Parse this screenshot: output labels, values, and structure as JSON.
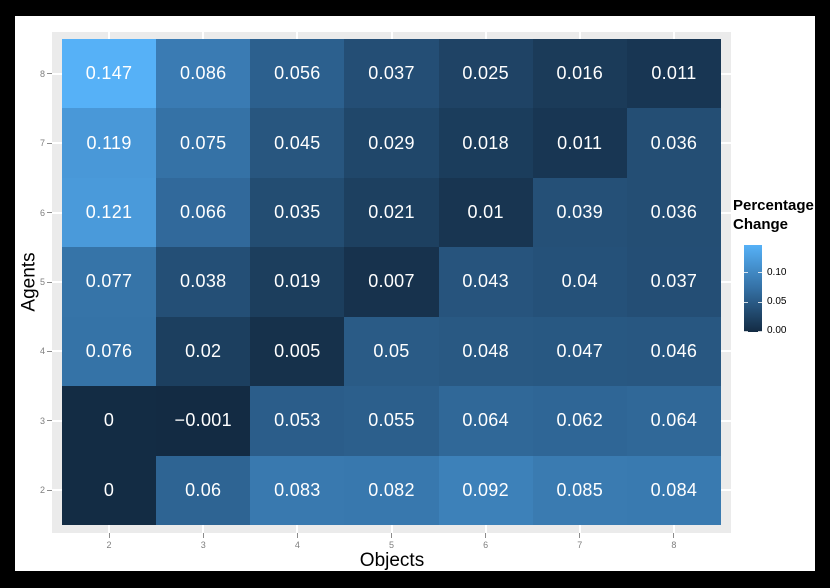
{
  "colors": {
    "page_bg": "#000000",
    "figure_bg": "#FFFFFF",
    "panel_bg": "#EBEBEB",
    "gridline": "#FFFFFF",
    "tick_mark": "#8C8C8C",
    "tick_label": "#7F7F7F",
    "axis_title": "#000000",
    "cell_text": "#FFFFFF",
    "scale_low": "#132B43",
    "scale_mid": "#3470A4",
    "scale_high": "#56B1F7"
  },
  "chart_data": {
    "type": "heatmap",
    "title": "",
    "xlabel": "Objects",
    "ylabel": "Agents",
    "x_categories": [
      "2",
      "3",
      "4",
      "5",
      "6",
      "7",
      "8"
    ],
    "y_categories_top_to_bottom": [
      "8",
      "7",
      "6",
      "5",
      "4",
      "3",
      "2"
    ],
    "rows_top_to_bottom": [
      [
        0.147,
        0.086,
        0.056,
        0.037,
        0.025,
        0.016,
        0.011
      ],
      [
        0.119,
        0.075,
        0.045,
        0.029,
        0.018,
        0.011,
        0.036
      ],
      [
        0.121,
        0.066,
        0.035,
        0.021,
        0.01,
        0.039,
        0.036
      ],
      [
        0.077,
        0.038,
        0.019,
        0.007,
        0.043,
        0.04,
        0.037
      ],
      [
        0.076,
        0.02,
        0.005,
        0.05,
        0.048,
        0.047,
        0.046
      ],
      [
        0,
        -0.001,
        0.053,
        0.055,
        0.064,
        0.062,
        0.064
      ],
      [
        0,
        0.06,
        0.083,
        0.082,
        0.092,
        0.085,
        0.084
      ]
    ],
    "value_range": {
      "min": -0.001,
      "max": 0.147
    },
    "grid": "major gridlines white, visible as stubs in panel margins",
    "legend": {
      "position": "right",
      "title": "Percentage Change",
      "tick_labels": [
        "0.10",
        "0.05",
        "0.00"
      ],
      "tick_values": [
        0.1,
        0.05,
        0.0
      ]
    }
  }
}
